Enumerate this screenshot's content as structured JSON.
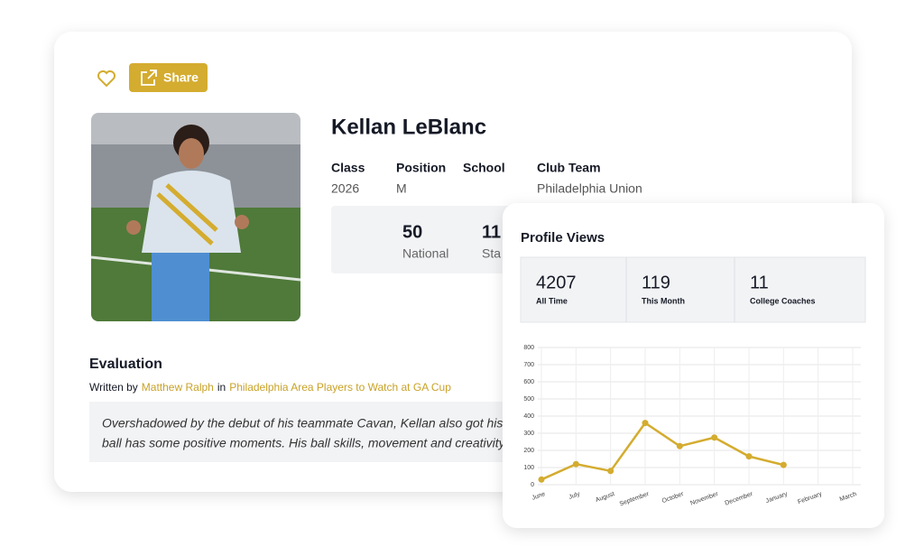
{
  "actions": {
    "share": "Share"
  },
  "profile": {
    "name": "Kellan LeBlanc",
    "fields": [
      {
        "label": "Class",
        "value": "2026"
      },
      {
        "label": "Position",
        "value": "M"
      },
      {
        "label": "School"
      },
      {
        "label": "Club Team",
        "value": "Philadelphia Union"
      }
    ],
    "rankings": [
      {
        "value": 50,
        "label": "National"
      },
      {
        "value": 11,
        "label": "Sta"
      }
    ]
  },
  "evaluation": {
    "title": "Evaluation",
    "written_by": "Written by",
    "author": "Matthew Ralph",
    "in": "in",
    "article": "Philadelphia Area Players to Watch at GA Cup",
    "text": [
      "Overshadowed by the debut of his teammate Cavan, Kellan also got his t",
      "ball has some positive moments. His ball skills, movement and creativity"
    ]
  },
  "profile_views": {
    "stats": [
      {
        "value": 4207,
        "label": "All Time"
      },
      {
        "value": 119,
        "label": "This Month"
      },
      {
        "value": 11,
        "label": "College Coaches"
      }
    ]
  },
  "chart_data": {
    "type": "line",
    "title": "Profile Views",
    "categories": [
      "June",
      "July",
      "August",
      "September",
      "October",
      "November",
      "December",
      "January",
      "February",
      "March"
    ],
    "values": [
      30,
      120,
      80,
      360,
      225,
      275,
      165,
      115,
      null,
      null
    ],
    "color": "#d4ac2f",
    "ylim": [
      0,
      800
    ],
    "yticks": [
      0,
      100,
      200,
      300,
      400,
      500,
      600,
      700,
      800
    ],
    "grid": true
  }
}
